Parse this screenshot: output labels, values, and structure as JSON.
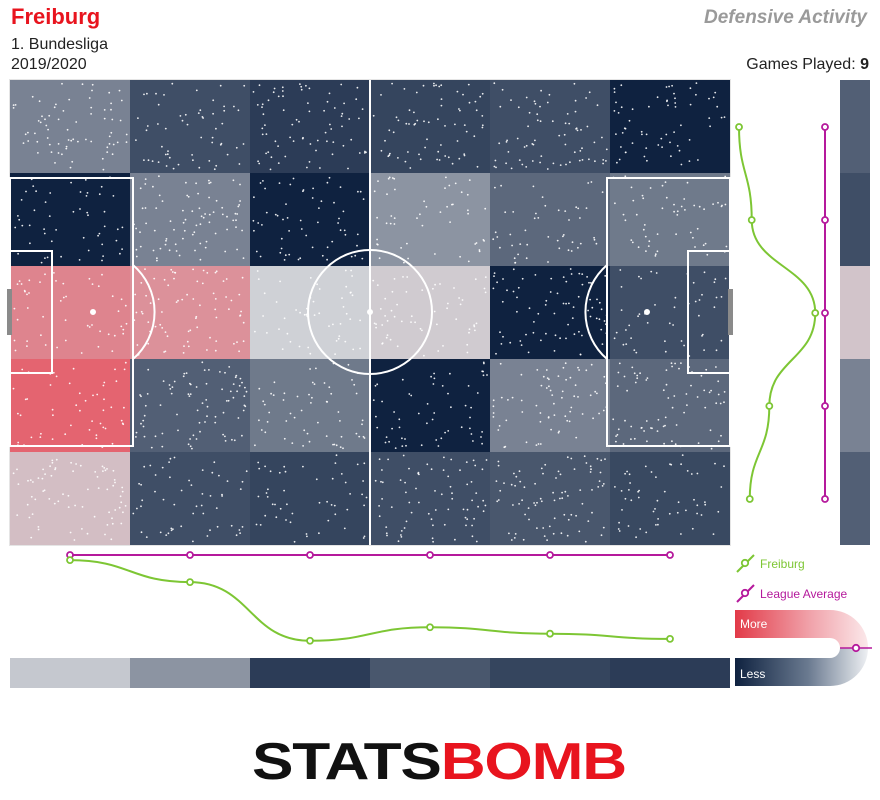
{
  "header": {
    "team": "Freiburg",
    "competition": "1. Bundesliga",
    "season": "2019/2020",
    "title": "Defensive Activity",
    "games_played_label": "Games Played:",
    "games_played": "9"
  },
  "legend": {
    "team_label": "Freiburg",
    "league_label": "League Average",
    "more_label": "More",
    "less_label": "Less"
  },
  "logo": {
    "part1": "STATS",
    "part2": "BOMB"
  },
  "colors": {
    "team_red": "#e8141e",
    "team_line": "#7dc634",
    "league_line": "#b5199c",
    "dark_navy": "#0f2240",
    "neutral": "#cfd1d6",
    "red_high": "#e8515e"
  },
  "chart_data": {
    "type": "heatmap",
    "title": "Defensive Activity",
    "grid": {
      "columns": 6,
      "rows": 5
    },
    "relative_activity": [
      [
        -0.45,
        -0.75,
        -0.85,
        -0.8,
        -0.75,
        -1.0
      ],
      [
        -1.0,
        -0.45,
        -1.0,
        -0.35,
        -0.6,
        -0.5
      ],
      [
        0.6,
        0.5,
        0.0,
        0.05,
        -1.0,
        -0.75
      ],
      [
        0.85,
        -0.65,
        -0.5,
        -1.0,
        -0.45,
        -0.6
      ],
      [
        0.15,
        -0.75,
        -0.8,
        -0.75,
        -0.7,
        -0.78
      ]
    ],
    "column_profile": {
      "team": [
        0.92,
        0.58,
        -0.33,
        -0.12,
        -0.22,
        -0.3
      ],
      "league_average": [
        1,
        1,
        1,
        1,
        1,
        1
      ],
      "band": [
        -0.05,
        -0.35,
        -0.85,
        -0.7,
        -0.8,
        -0.85
      ]
    },
    "row_profile": {
      "team": [
        0.12,
        0.25,
        0.9,
        0.43,
        0.23
      ],
      "league_average": [
        1,
        1,
        1,
        1,
        1
      ],
      "band": [
        -0.65,
        -0.75,
        0.1,
        -0.45,
        -0.65
      ]
    }
  }
}
